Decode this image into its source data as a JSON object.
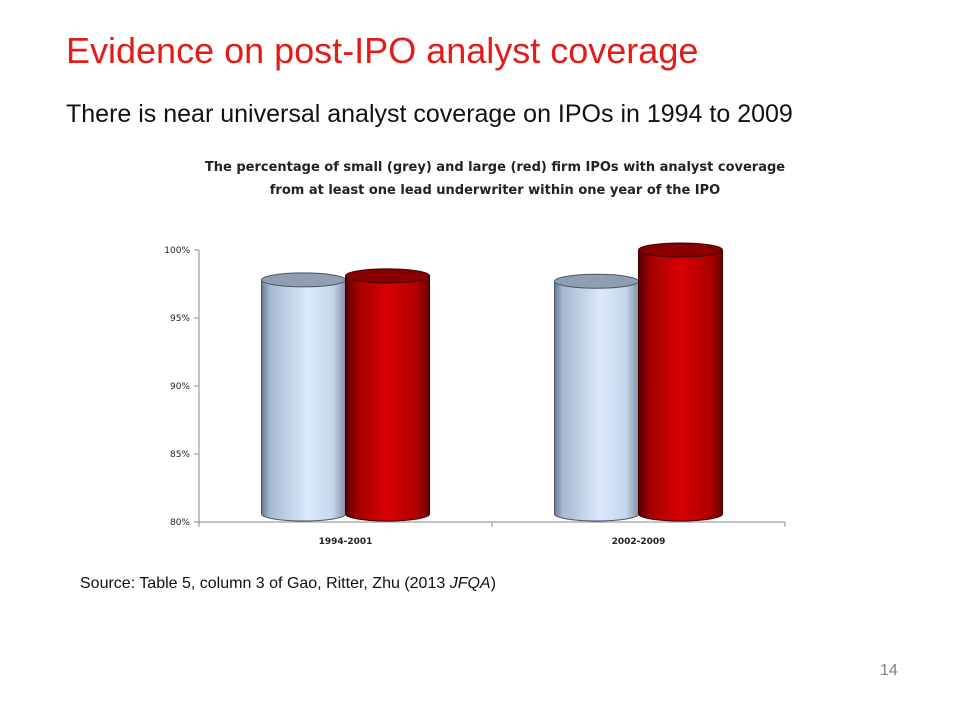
{
  "slide": {
    "title": "Evidence on post-IPO analyst coverage",
    "subtitle": "There is near universal analyst coverage on IPOs in 1994 to 2009",
    "source_prefix": "Source: Table 5, column 3 of Gao, Ritter, Zhu (2013 ",
    "source_journal": "JFQA",
    "source_suffix": ")",
    "page_number": "14"
  },
  "chart_data": {
    "type": "bar",
    "title": "The percentage of small  (grey) and large (red) firm IPOs with analyst coverage from at least one lead underwriter within one year of the IPO",
    "xlabel": "",
    "ylabel": "",
    "categories": [
      "1994-2001",
      "2002-2009"
    ],
    "series": [
      {
        "values": [
          97.8,
          97.7
        ],
        "color": "#c5d9f1"
      },
      {
        "values": [
          98.1,
          100.0
        ],
        "color": "#c00000"
      }
    ],
    "ylim": [
      80,
      100
    ],
    "yticks": [
      80,
      85,
      90,
      95,
      100
    ],
    "ytick_labels": [
      "80%",
      "85%",
      "90%",
      "95%",
      "100%"
    ],
    "grid": false,
    "legend": "none",
    "style": "3d-cylinder"
  }
}
